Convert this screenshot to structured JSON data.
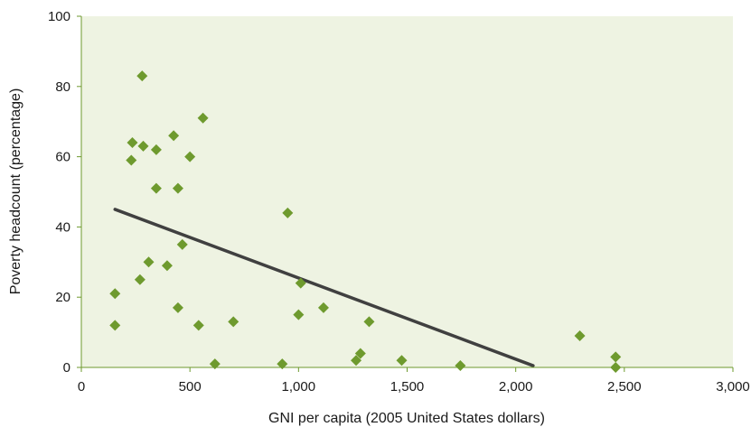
{
  "chart_data": {
    "type": "scatter",
    "title": "",
    "xlabel": "GNI per capita (2005 United States dollars)",
    "ylabel": "Poverty headcount (percentage)",
    "xlim": [
      0,
      3000
    ],
    "ylim": [
      0,
      100
    ],
    "grid": false,
    "x_ticks": [
      {
        "value": 0,
        "label": "0"
      },
      {
        "value": 500,
        "label": "500"
      },
      {
        "value": 1000,
        "label": "1,000"
      },
      {
        "value": 1500,
        "label": "1,500"
      },
      {
        "value": 2000,
        "label": "2,000"
      },
      {
        "value": 2500,
        "label": "2,500"
      },
      {
        "value": 3000,
        "label": "3,000"
      }
    ],
    "y_ticks": [
      {
        "value": 0,
        "label": "0"
      },
      {
        "value": 20,
        "label": "20"
      },
      {
        "value": 40,
        "label": "40"
      },
      {
        "value": 60,
        "label": "60"
      },
      {
        "value": 80,
        "label": "80"
      },
      {
        "value": 100,
        "label": "100"
      }
    ],
    "series": [
      {
        "marker": "diamond",
        "color": "#6e9a2e",
        "points": [
          {
            "x": 280,
            "y": 83
          },
          {
            "x": 560,
            "y": 71
          },
          {
            "x": 425,
            "y": 66
          },
          {
            "x": 235,
            "y": 64
          },
          {
            "x": 285,
            "y": 63
          },
          {
            "x": 345,
            "y": 62
          },
          {
            "x": 500,
            "y": 60
          },
          {
            "x": 230,
            "y": 59
          },
          {
            "x": 345,
            "y": 51
          },
          {
            "x": 445,
            "y": 51
          },
          {
            "x": 950,
            "y": 44
          },
          {
            "x": 465,
            "y": 35
          },
          {
            "x": 310,
            "y": 30
          },
          {
            "x": 395,
            "y": 29
          },
          {
            "x": 270,
            "y": 25
          },
          {
            "x": 1010,
            "y": 24
          },
          {
            "x": 155,
            "y": 21
          },
          {
            "x": 445,
            "y": 17
          },
          {
            "x": 1115,
            "y": 17
          },
          {
            "x": 1000,
            "y": 15
          },
          {
            "x": 1325,
            "y": 13
          },
          {
            "x": 700,
            "y": 13
          },
          {
            "x": 540,
            "y": 12
          },
          {
            "x": 155,
            "y": 12
          },
          {
            "x": 2295,
            "y": 9
          },
          {
            "x": 1285,
            "y": 4
          },
          {
            "x": 1265,
            "y": 2
          },
          {
            "x": 1475,
            "y": 2
          },
          {
            "x": 2460,
            "y": 3
          },
          {
            "x": 615,
            "y": 1
          },
          {
            "x": 925,
            "y": 1
          },
          {
            "x": 1745,
            "y": 0.5
          },
          {
            "x": 2460,
            "y": 0
          }
        ]
      }
    ],
    "trendline": {
      "color": "#404040",
      "x": [
        155,
        2080
      ],
      "y": [
        45,
        0.5
      ]
    },
    "colors": {
      "plot_background": "#eef3e2",
      "axis": "#6e9a2e",
      "marker": "#6e9a2e",
      "trendline": "#404040"
    }
  }
}
